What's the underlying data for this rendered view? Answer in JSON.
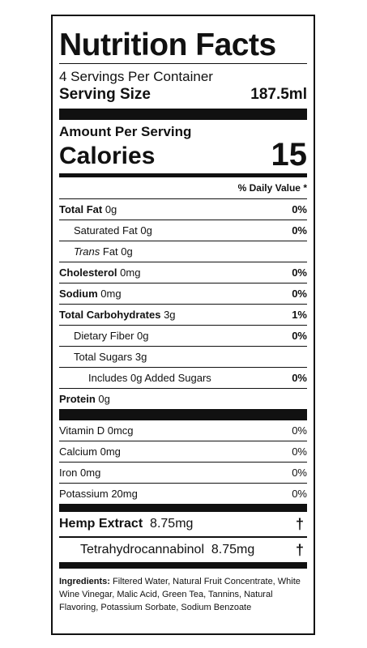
{
  "title": "Nutrition Facts",
  "servings_per_container": "4 Servings Per Container",
  "serving_size": {
    "label": "Serving Size",
    "value": "187.5ml"
  },
  "amount_per_serving": "Amount Per Serving",
  "calories": {
    "label": "Calories",
    "value": "15"
  },
  "daily_value_header": "% Daily Value *",
  "nutrients": [
    {
      "name": "Total Fat",
      "amount": "0g",
      "dv": "0%"
    },
    {
      "name": "Saturated Fat",
      "amount": "0g",
      "dv": "0%"
    },
    {
      "name": "Trans",
      "amount": "Fat 0g",
      "dv": ""
    },
    {
      "name": "Cholesterol",
      "amount": "0mg",
      "dv": "0%"
    },
    {
      "name": "Sodium",
      "amount": "0mg",
      "dv": "0%"
    },
    {
      "name": "Total Carbohydrates",
      "amount": "3g",
      "dv": "1%"
    },
    {
      "name": "Dietary Fiber",
      "amount": "0g",
      "dv": "0%"
    },
    {
      "name": "Total Sugars",
      "amount": "3g",
      "dv": ""
    },
    {
      "name": "Includes 0g Added Sugars",
      "amount": "",
      "dv": "0%"
    },
    {
      "name": "Protein",
      "amount": "0g",
      "dv": ""
    }
  ],
  "vitamins": [
    {
      "name": "Vitamin D",
      "amount": "0mcg",
      "dv": "0%"
    },
    {
      "name": "Calcium",
      "amount": "0mg",
      "dv": "0%"
    },
    {
      "name": "Iron",
      "amount": "0mg",
      "dv": "0%"
    },
    {
      "name": "Potassium",
      "amount": "20mg",
      "dv": "0%"
    }
  ],
  "hemp_extract": {
    "name": "Hemp Extract",
    "amount": "8.75mg",
    "symbol": "†"
  },
  "thc": {
    "name": "Tetrahydrocannabinol",
    "amount": "8.75mg",
    "symbol": "†"
  },
  "ingredients": {
    "label": "Ingredients:",
    "text": "Filtered Water, Natural Fruit Concentrate, White Wine Vinegar, Malic Acid, Green Tea, Tannins, Natural Flavoring, Potassium Sorbate, Sodium Benzoate"
  }
}
